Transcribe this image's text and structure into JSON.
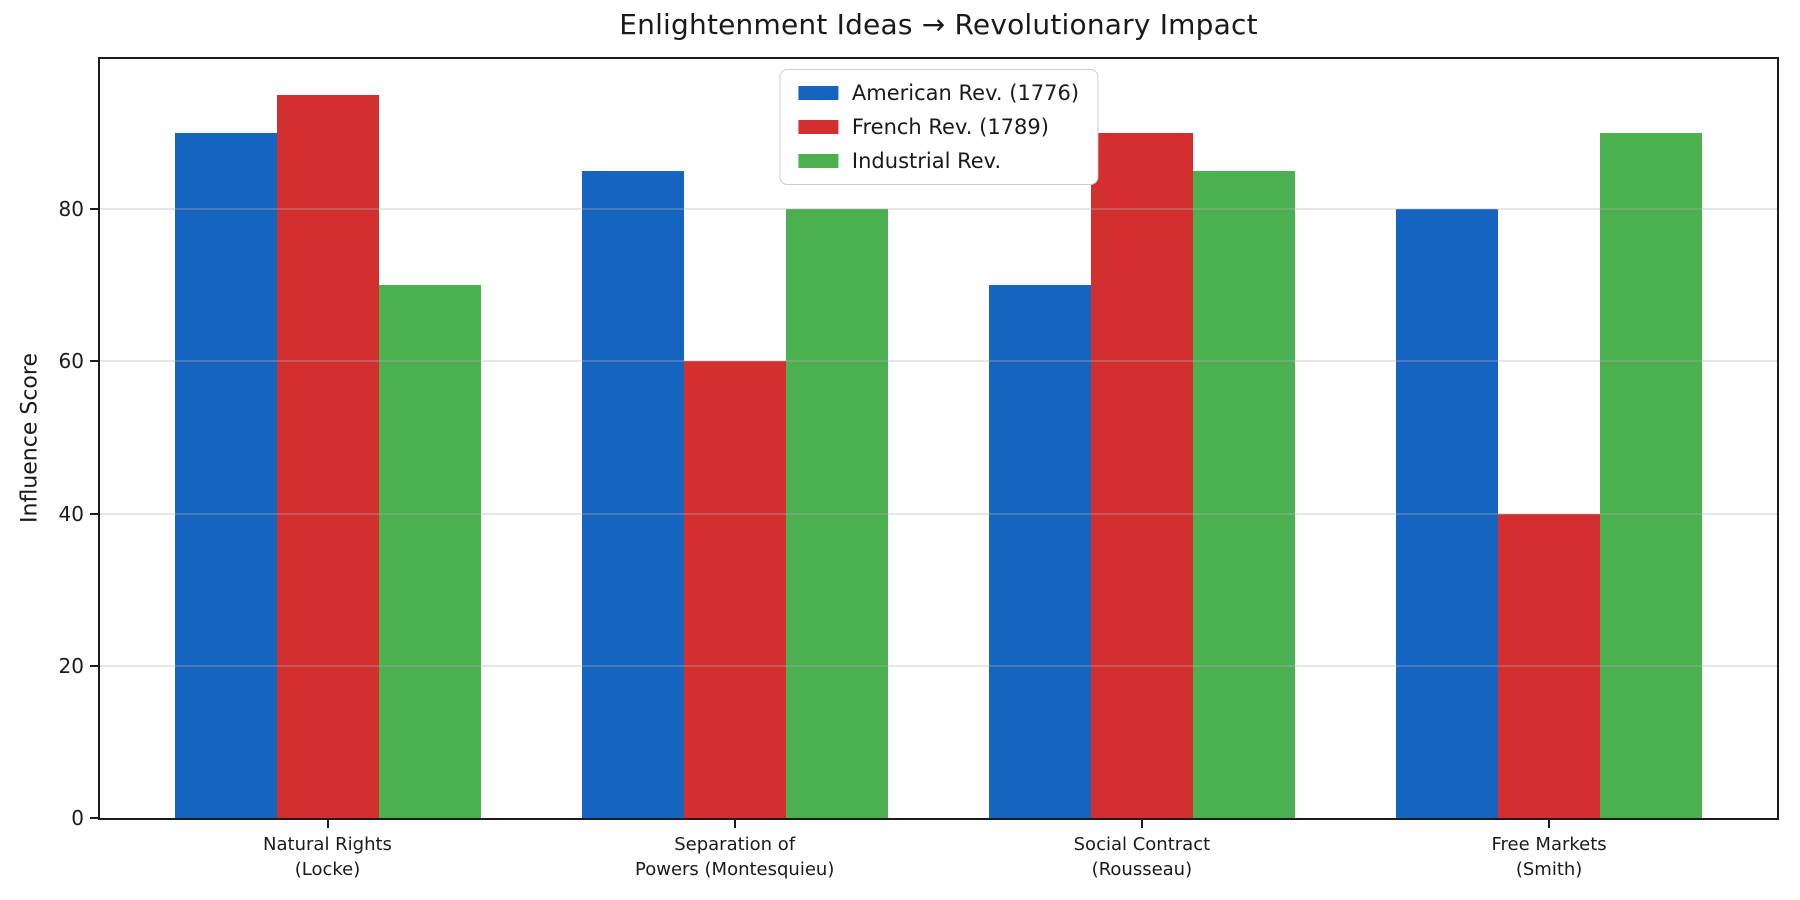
{
  "title": "Enlightenment Ideas → Revolutionary Impact",
  "chart_data": {
    "type": "bar",
    "title": "Enlightenment Ideas → Revolutionary Impact",
    "xlabel": "",
    "ylabel": "Influence Score",
    "categories": [
      "Natural Rights\n(Locke)",
      "Separation of\nPowers (Montesquieu)",
      "Social Contract\n(Rousseau)",
      "Free Markets\n(Smith)"
    ],
    "series": [
      {
        "name": "American Rev. (1776)",
        "color": "#1565C0",
        "values": [
          90,
          85,
          70,
          80
        ]
      },
      {
        "name": "French Rev. (1789)",
        "color": "#D32F2F",
        "values": [
          95,
          60,
          90,
          40
        ]
      },
      {
        "name": "Industrial Rev.",
        "color": "#4CAF50",
        "values": [
          70,
          80,
          85,
          90
        ]
      }
    ],
    "yticks": [
      0,
      20,
      40,
      60,
      80
    ],
    "ylim": [
      0,
      99.75
    ],
    "grid": true,
    "grid_color": "#b0b0b0",
    "spine_color": "#1c1c1c",
    "legend_position": "upper center"
  }
}
